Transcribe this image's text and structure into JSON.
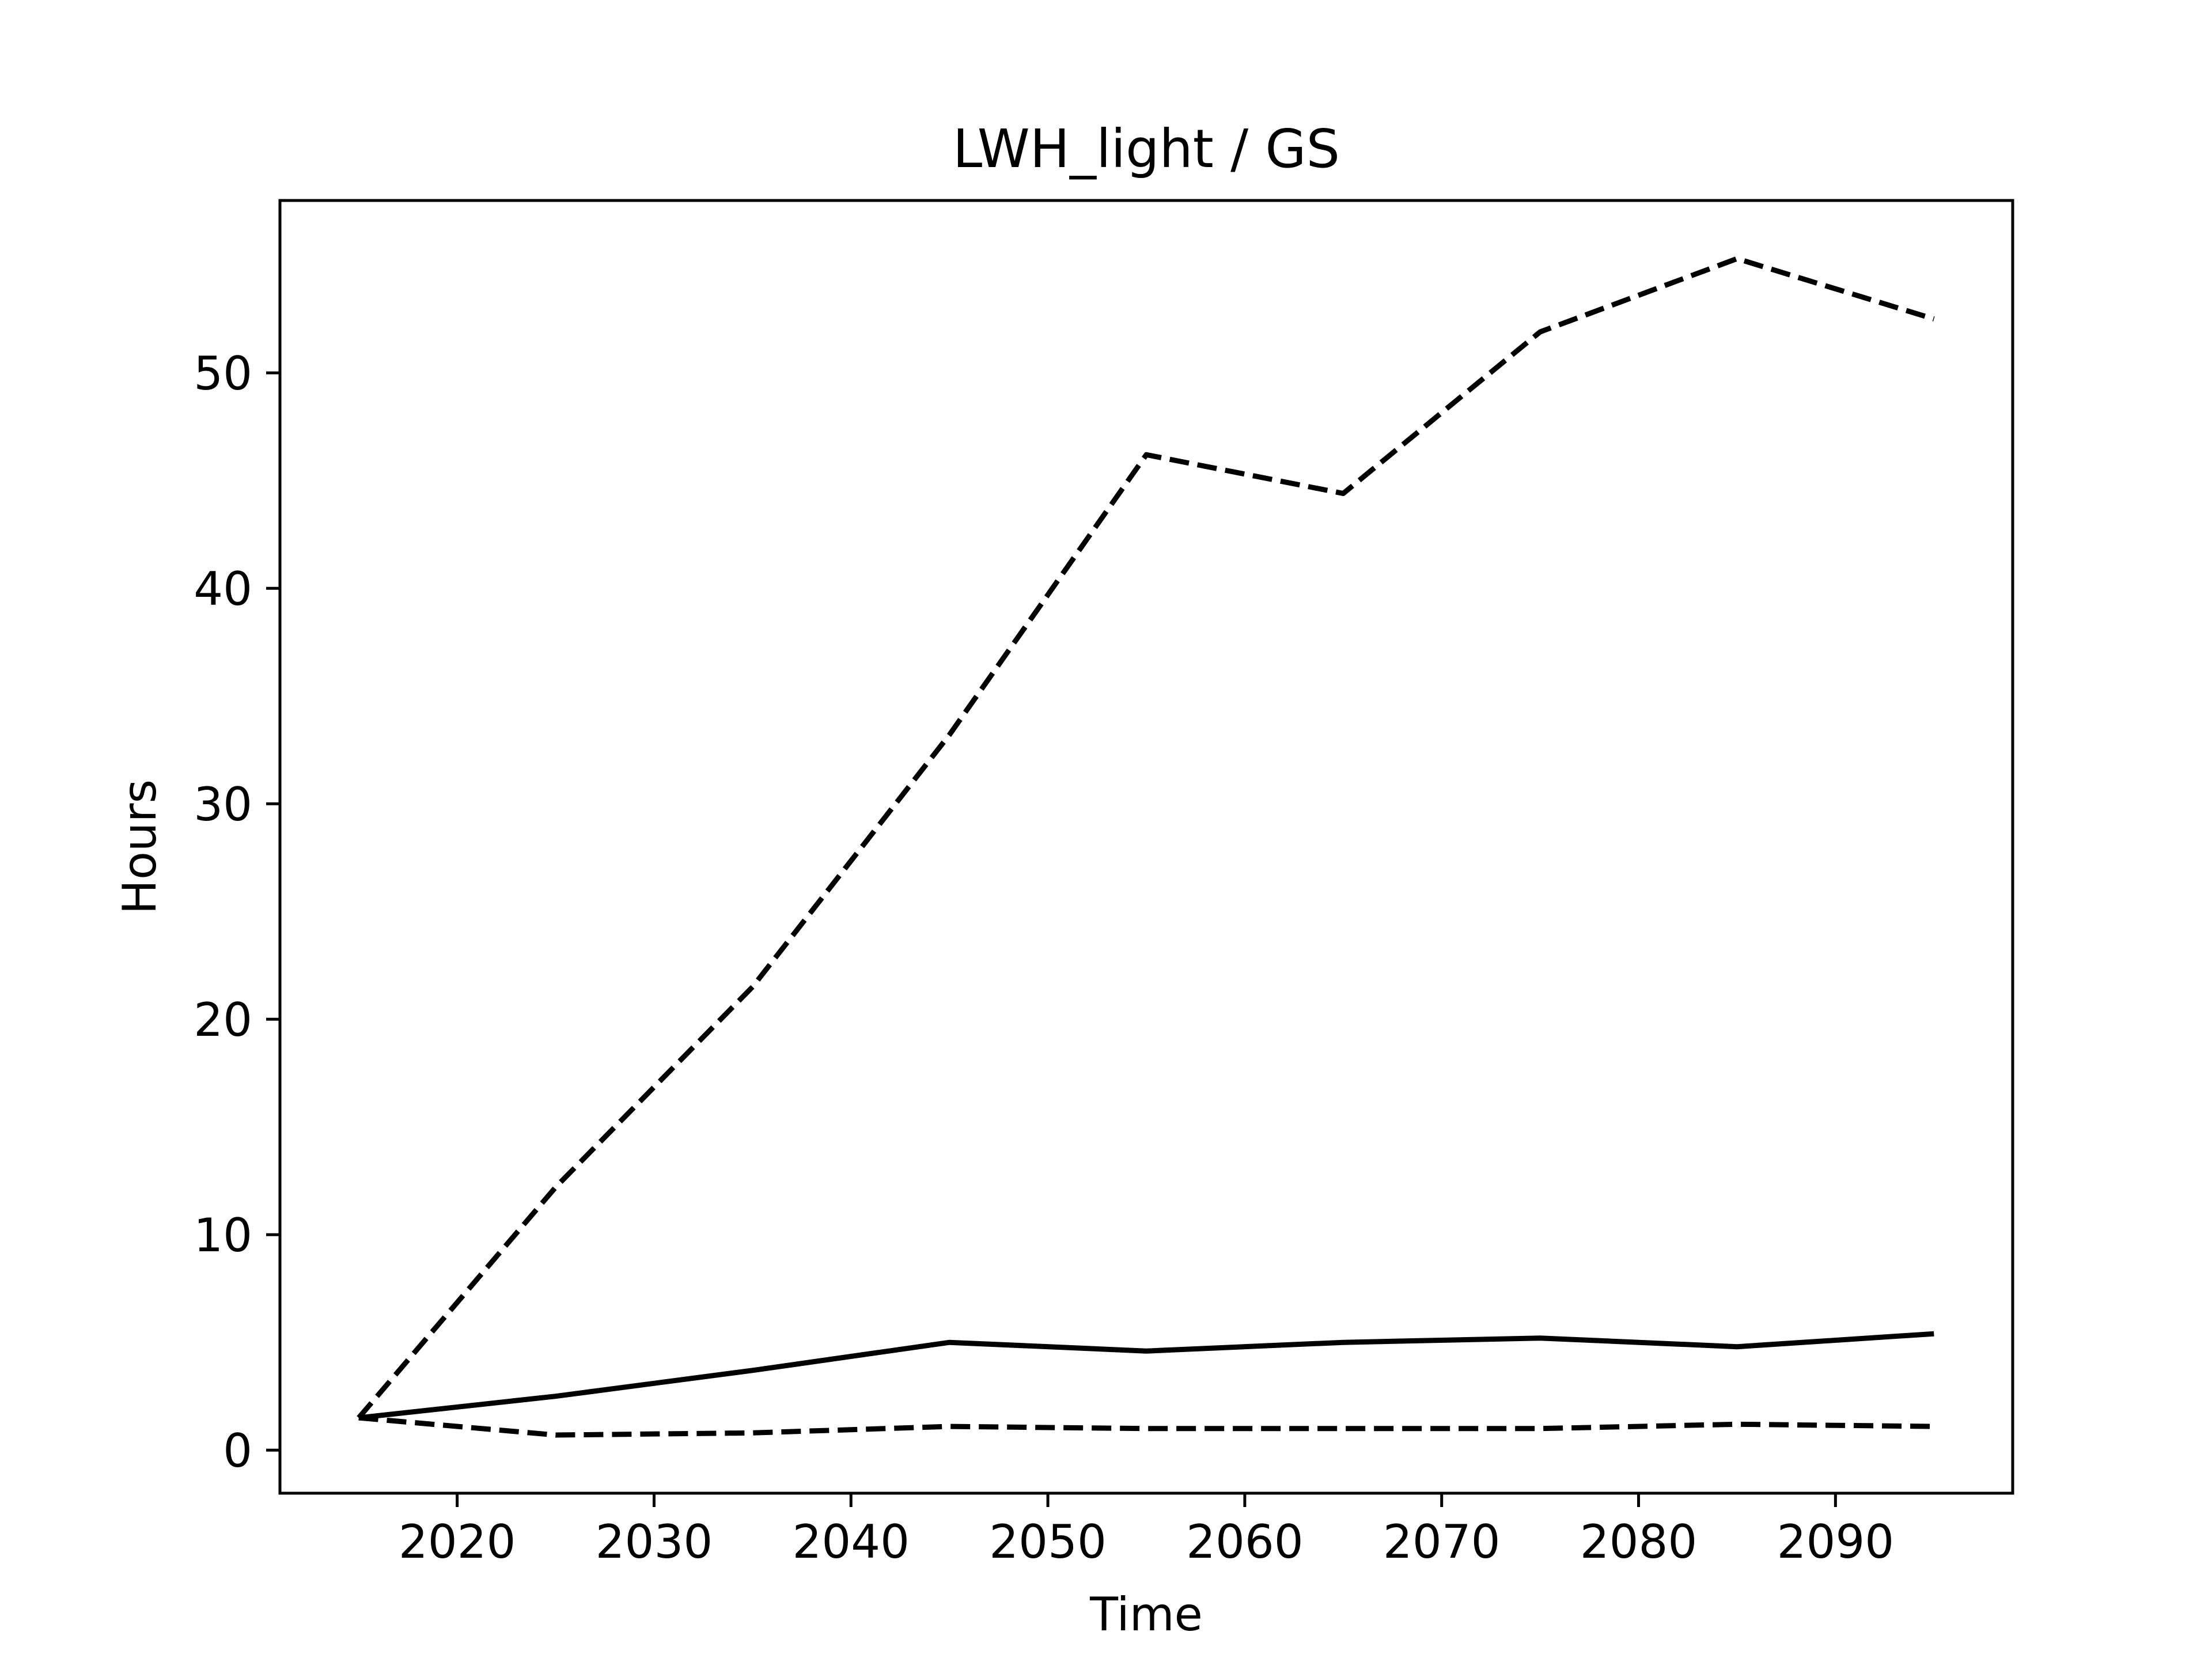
{
  "chart_data": {
    "type": "line",
    "title": "LWH_light / GS",
    "xlabel": "Time",
    "ylabel": "Hours",
    "xlim": [
      2011,
      2099
    ],
    "ylim": [
      -2,
      58
    ],
    "x_ticks": [
      2020,
      2030,
      2040,
      2050,
      2060,
      2070,
      2080,
      2090
    ],
    "y_ticks": [
      0,
      10,
      20,
      30,
      40,
      50
    ],
    "grid": false,
    "legend": false,
    "x": [
      2015,
      2025,
      2035,
      2045,
      2055,
      2065,
      2075,
      2085,
      2095
    ],
    "series": [
      {
        "line_style": "dashed",
        "color": "#000000",
        "values": [
          1.5,
          12.2,
          21.5,
          33.2,
          46.2,
          44.4,
          51.9,
          55.3,
          52.5
        ]
      },
      {
        "line_style": "solid",
        "color": "#000000",
        "values": [
          1.5,
          2.5,
          3.7,
          5.0,
          4.6,
          5.0,
          5.2,
          4.8,
          5.4
        ]
      },
      {
        "line_style": "dashed",
        "color": "#000000",
        "values": [
          1.5,
          0.7,
          0.8,
          1.1,
          1.0,
          1.0,
          1.0,
          1.2,
          1.1
        ]
      }
    ]
  }
}
